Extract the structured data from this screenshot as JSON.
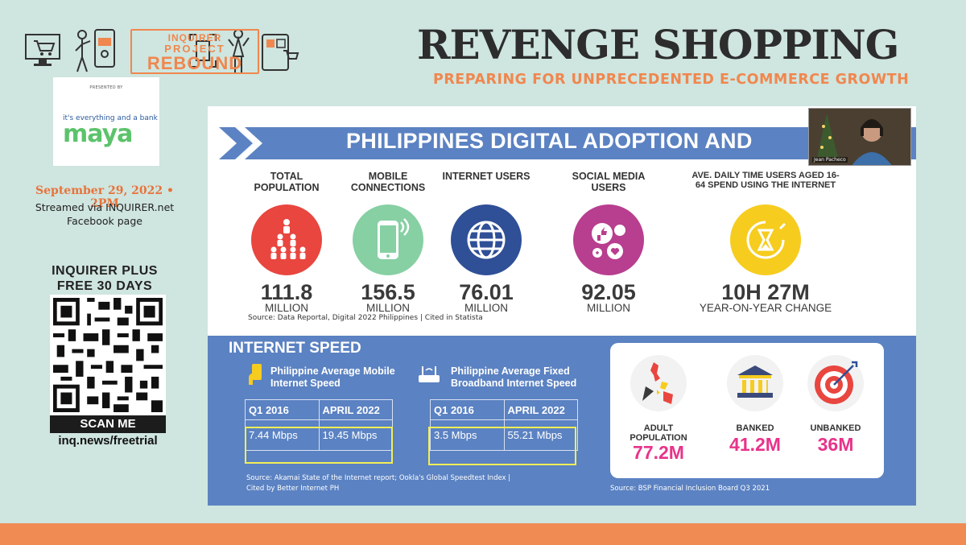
{
  "header": {
    "logo": {
      "line1": "INQUIRER",
      "line2": "PROJECT",
      "line3": "REBOUND"
    },
    "title": "REVENGE SHOPPING",
    "subtitle": "PREPARING FOR UNPRECEDENTED E-COMMERCE GROWTH"
  },
  "sidebar": {
    "sponsor": {
      "presented_by": "PRESENTED BY",
      "tagline": "it's everything and a bank",
      "brand": "maya"
    },
    "date": "September 29, 2022 • 2PM",
    "stream_line1": "Streamed via INQUIRER.net",
    "stream_line2": "Facebook page",
    "promo_line1": "INQUIRER PLUS",
    "promo_line2": "FREE 30 DAYS",
    "scan": "SCAN ME",
    "link": "inq.news/freetrial"
  },
  "slide": {
    "banner_title": "PHILIPPINES DIGITAL ADOPTION AND",
    "presenter": "Jean Pacheco",
    "stats": [
      {
        "label": "TOTAL POPULATION",
        "value": "111.8",
        "unit": "MILLION",
        "color": "#e8463f",
        "icon": "population-icon"
      },
      {
        "label": "MOBILE CONNECTIONS",
        "value": "156.5",
        "unit": "MILLION",
        "color": "#86d0a3",
        "icon": "mobile-phone-icon"
      },
      {
        "label": "INTERNET USERS",
        "value": "76.01",
        "unit": "MILLION",
        "color": "#2f4f97",
        "icon": "globe-icon"
      },
      {
        "label": "SOCIAL MEDIA USERS",
        "value": "92.05",
        "unit": "MILLION",
        "color": "#b83e8f",
        "icon": "social-media-icon"
      },
      {
        "label": "AVE. DAILY TIME USERS AGED 16-64 SPEND USING THE INTERNET",
        "value": "10H 27M",
        "unit": "YEAR-ON-YEAR CHANGE",
        "color": "#f6cc1f",
        "icon": "hourglass-icon"
      }
    ],
    "source1": "Source: Data Reportal, Digital 2022 Philippines | Cited in Statista",
    "speed": {
      "title": "INTERNET SPEED",
      "mobile": {
        "heading_line1": "Philippine Average Mobile",
        "heading_line2": "Internet Speed",
        "col1": "Q1 2016",
        "col2": "APRIL 2022",
        "val1": "7.44 Mbps",
        "val2": "19.45 Mbps"
      },
      "fixed": {
        "heading_line1": "Philippine Average Fixed",
        "heading_line2": "Broadband Internet Speed",
        "col1": "Q1 2016",
        "col2": "APRIL 2022",
        "val1": "3.5 Mbps",
        "val2": "55.21 Mbps"
      },
      "source_line1": "Source: Akamai State of the Internet report; Ookla's Global Speedtest Index |",
      "source_line2": "Cited by Better Internet PH"
    },
    "finance": {
      "items": [
        {
          "label_line1": "ADULT",
          "label_line2": "POPULATION",
          "value": "77.2M"
        },
        {
          "label_line1": "BANKED",
          "label_line2": "",
          "value": "41.2M"
        },
        {
          "label_line1": "UNBANKED",
          "label_line2": "",
          "value": "36M"
        }
      ],
      "source": "Source: BSP Financial Inclusion Board Q3 2021"
    }
  }
}
